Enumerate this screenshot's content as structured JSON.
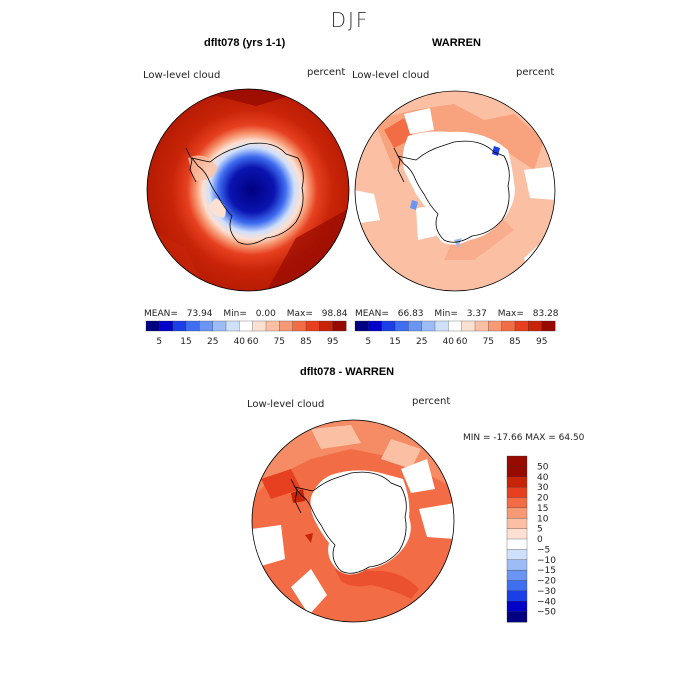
{
  "figure": {
    "season": "DJF",
    "colors": {
      "palette": [
        "#000080",
        "#0000c8",
        "#1a3fe6",
        "#3f6ef0",
        "#6b95f2",
        "#9dbcf6",
        "#cfe0fb",
        "#ffffff",
        "#fde0d2",
        "#fbc0a4",
        "#f79a74",
        "#f26d45",
        "#e64020",
        "#c82408",
        "#960a00"
      ]
    },
    "panels": [
      {
        "id": "model",
        "title": "dflt078 (yrs 1-1)",
        "variable": "Low-level cloud",
        "units": "percent",
        "stats": {
          "mean_label": "MEAN=",
          "mean": "73.94",
          "min_label": "Min=",
          "min": "0.00",
          "max_label": "Max=",
          "max": "98.84"
        },
        "colorbar_labels": [
          "5",
          "15",
          "25",
          "40",
          "60",
          "75",
          "85",
          "95"
        ]
      },
      {
        "id": "obs",
        "title": "WARREN",
        "variable": "Low-level cloud",
        "units": "percent",
        "stats": {
          "mean_label": "MEAN=",
          "mean": "66.83",
          "min_label": "Min=",
          "min": "3.37",
          "max_label": "Max=",
          "max": "83.28"
        },
        "colorbar_labels": [
          "5",
          "15",
          "25",
          "40",
          "60",
          "75",
          "85",
          "95"
        ]
      },
      {
        "id": "diff",
        "title": "dflt078 - WARREN",
        "variable": "Low-level cloud",
        "units": "percent",
        "stats_line": "MIN = -17.66 MAX =  64.50",
        "colorbar_labels": [
          "50",
          "40",
          "30",
          "20",
          "15",
          "10",
          "5",
          "0",
          "−5",
          "−10",
          "−15",
          "−20",
          "−30",
          "−40",
          "−50"
        ]
      }
    ]
  }
}
